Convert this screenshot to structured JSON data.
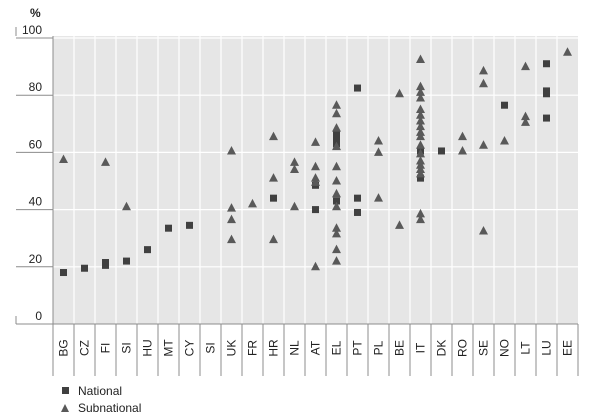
{
  "chart_data": {
    "type": "scatter",
    "unit": "%",
    "ylim": [
      0,
      100
    ],
    "yticks": [
      0,
      20,
      40,
      60,
      80,
      100
    ],
    "grid": true,
    "legend_position": "bottom-left",
    "colors": {
      "plot_bg": "#e6e6e6",
      "grid": "#ffffff",
      "national": "#404040",
      "subnational": "#595959"
    },
    "categories": [
      "BG",
      "CZ",
      "FI",
      "SI",
      "HU",
      "MT",
      "CY",
      "SI",
      "UK",
      "FR",
      "HR",
      "NL",
      "AT",
      "EL",
      "PT",
      "PL",
      "BE",
      "IT",
      "DK",
      "RO",
      "SE",
      "NO",
      "LT",
      "LU",
      "EE"
    ],
    "series": [
      {
        "name": "National",
        "marker": "square",
        "points": [
          {
            "x": "BG",
            "y": 18
          },
          {
            "x": "CZ",
            "y": 19.5
          },
          {
            "x": "FI",
            "y": 20.5
          },
          {
            "x": "FI",
            "y": 21.5
          },
          {
            "x": "SI",
            "y": 22
          },
          {
            "x": "HU",
            "y": 26
          },
          {
            "x": "MT",
            "y": 33.5
          },
          {
            "x": "CY",
            "y": 34.5
          },
          {
            "x": "HR",
            "y": 44
          },
          {
            "x": "AT",
            "y": 40
          },
          {
            "x": "AT",
            "y": 48.5
          },
          {
            "x": "EL",
            "y": 43
          },
          {
            "x": "EL",
            "y": 63
          },
          {
            "x": "EL",
            "y": 65
          },
          {
            "x": "EL",
            "y": 66.5
          },
          {
            "x": "PT",
            "y": 39
          },
          {
            "x": "PT",
            "y": 44
          },
          {
            "x": "PT",
            "y": 82.5
          },
          {
            "x": "IT",
            "y": 60.5
          },
          {
            "x": "IT",
            "y": 51
          },
          {
            "x": "DK",
            "y": 60.5
          },
          {
            "x": "NO",
            "y": 76.5
          },
          {
            "x": "LU",
            "y": 72
          },
          {
            "x": "LU",
            "y": 80.5
          },
          {
            "x": "LU",
            "y": 81.5
          },
          {
            "x": "LU",
            "y": 91
          }
        ]
      },
      {
        "name": "Subnational",
        "marker": "triangle",
        "points": [
          {
            "x": "BG",
            "y": 57.5
          },
          {
            "x": "FI",
            "y": 56.5
          },
          {
            "x": "SI",
            "y": 41
          },
          {
            "x": "UK",
            "y": 29.5
          },
          {
            "x": "UK",
            "y": 36.5
          },
          {
            "x": "UK",
            "y": 40.5
          },
          {
            "x": "UK",
            "y": 60.5
          },
          {
            "x": "FR",
            "y": 42
          },
          {
            "x": "HR",
            "y": 29.5
          },
          {
            "x": "HR",
            "y": 51
          },
          {
            "x": "HR",
            "y": 65.5
          },
          {
            "x": "NL",
            "y": 41
          },
          {
            "x": "NL",
            "y": 54
          },
          {
            "x": "NL",
            "y": 56.5
          },
          {
            "x": "AT",
            "y": 20
          },
          {
            "x": "AT",
            "y": 49.5
          },
          {
            "x": "AT",
            "y": 51
          },
          {
            "x": "AT",
            "y": 55
          },
          {
            "x": "AT",
            "y": 63.5
          },
          {
            "x": "EL",
            "y": 22
          },
          {
            "x": "EL",
            "y": 26
          },
          {
            "x": "EL",
            "y": 31.5
          },
          {
            "x": "EL",
            "y": 33.5
          },
          {
            "x": "EL",
            "y": 41
          },
          {
            "x": "EL",
            "y": 45.5
          },
          {
            "x": "EL",
            "y": 50
          },
          {
            "x": "EL",
            "y": 55
          },
          {
            "x": "EL",
            "y": 62
          },
          {
            "x": "EL",
            "y": 68.5
          },
          {
            "x": "EL",
            "y": 73.5
          },
          {
            "x": "EL",
            "y": 76.5
          },
          {
            "x": "PL",
            "y": 44
          },
          {
            "x": "PL",
            "y": 60
          },
          {
            "x": "PL",
            "y": 64
          },
          {
            "x": "BE",
            "y": 34.5
          },
          {
            "x": "BE",
            "y": 80.5
          },
          {
            "x": "IT",
            "y": 36.5
          },
          {
            "x": "IT",
            "y": 38.5
          },
          {
            "x": "IT",
            "y": 52.5
          },
          {
            "x": "IT",
            "y": 54
          },
          {
            "x": "IT",
            "y": 55.5
          },
          {
            "x": "IT",
            "y": 57
          },
          {
            "x": "IT",
            "y": 59.5
          },
          {
            "x": "IT",
            "y": 62.5
          },
          {
            "x": "IT",
            "y": 65.5
          },
          {
            "x": "IT",
            "y": 67
          },
          {
            "x": "IT",
            "y": 69
          },
          {
            "x": "IT",
            "y": 71
          },
          {
            "x": "IT",
            "y": 73
          },
          {
            "x": "IT",
            "y": 75
          },
          {
            "x": "IT",
            "y": 79
          },
          {
            "x": "IT",
            "y": 81
          },
          {
            "x": "IT",
            "y": 83
          },
          {
            "x": "IT",
            "y": 92.5
          },
          {
            "x": "RO",
            "y": 60.5
          },
          {
            "x": "RO",
            "y": 65.5
          },
          {
            "x": "SE",
            "y": 32.5
          },
          {
            "x": "SE",
            "y": 62.5
          },
          {
            "x": "SE",
            "y": 84
          },
          {
            "x": "SE",
            "y": 88.5
          },
          {
            "x": "NO",
            "y": 64
          },
          {
            "x": "LT",
            "y": 70.5
          },
          {
            "x": "LT",
            "y": 72.5
          },
          {
            "x": "LT",
            "y": 90
          },
          {
            "x": "EE",
            "y": 95
          }
        ]
      }
    ]
  }
}
